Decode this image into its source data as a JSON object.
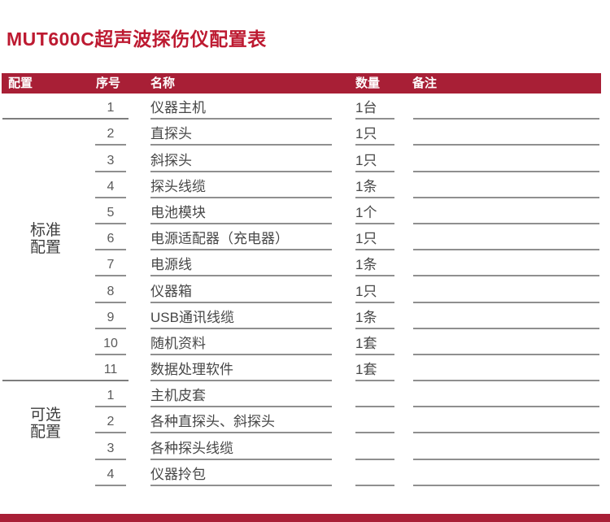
{
  "page": {
    "title": "MUT600C超声波探伤仪配置表"
  },
  "colors": {
    "title": "#bd1a31",
    "header_bg": "#a81f36",
    "footer_bg": "#a81f36",
    "row_text": "#474747",
    "underline": "#8f8f8f"
  },
  "table": {
    "columns": [
      "配置",
      "序号",
      "名称",
      "数量",
      "备注"
    ],
    "groups": [
      {
        "label": "标准配置",
        "label_lines": [
          "标准",
          "配置"
        ],
        "rows": [
          {
            "no": "1",
            "name": "仪器主机",
            "qty": "1台",
            "remark": ""
          },
          {
            "no": "2",
            "name": "直探头",
            "qty": "1只",
            "remark": ""
          },
          {
            "no": "3",
            "name": "斜探头",
            "qty": "1只",
            "remark": ""
          },
          {
            "no": "4",
            "name": "探头线缆",
            "qty": "1条",
            "remark": ""
          },
          {
            "no": "5",
            "name": "电池模块",
            "qty": "1个",
            "remark": ""
          },
          {
            "no": "6",
            "name": "电源适配器（充电器）",
            "qty": "1只",
            "remark": ""
          },
          {
            "no": "7",
            "name": "电源线",
            "qty": "1条",
            "remark": ""
          },
          {
            "no": "8",
            "name": "仪器箱",
            "qty": "1只",
            "remark": ""
          },
          {
            "no": "9",
            "name": "USB通讯线缆",
            "qty": "1条",
            "remark": ""
          },
          {
            "no": "10",
            "name": "随机资料",
            "qty": "1套",
            "remark": ""
          },
          {
            "no": "11",
            "name": "数据处理软件",
            "qty": "1套",
            "remark": ""
          }
        ]
      },
      {
        "label": "可选配置",
        "label_lines": [
          "可选",
          "配置"
        ],
        "rows": [
          {
            "no": "1",
            "name": "主机皮套",
            "qty": "",
            "remark": ""
          },
          {
            "no": "2",
            "name": "各种直探头、斜探头",
            "qty": "",
            "remark": ""
          },
          {
            "no": "3",
            "name": "各种探头线缆",
            "qty": "",
            "remark": ""
          },
          {
            "no": "4",
            "name": "仪器拎包",
            "qty": "",
            "remark": ""
          }
        ]
      }
    ]
  }
}
